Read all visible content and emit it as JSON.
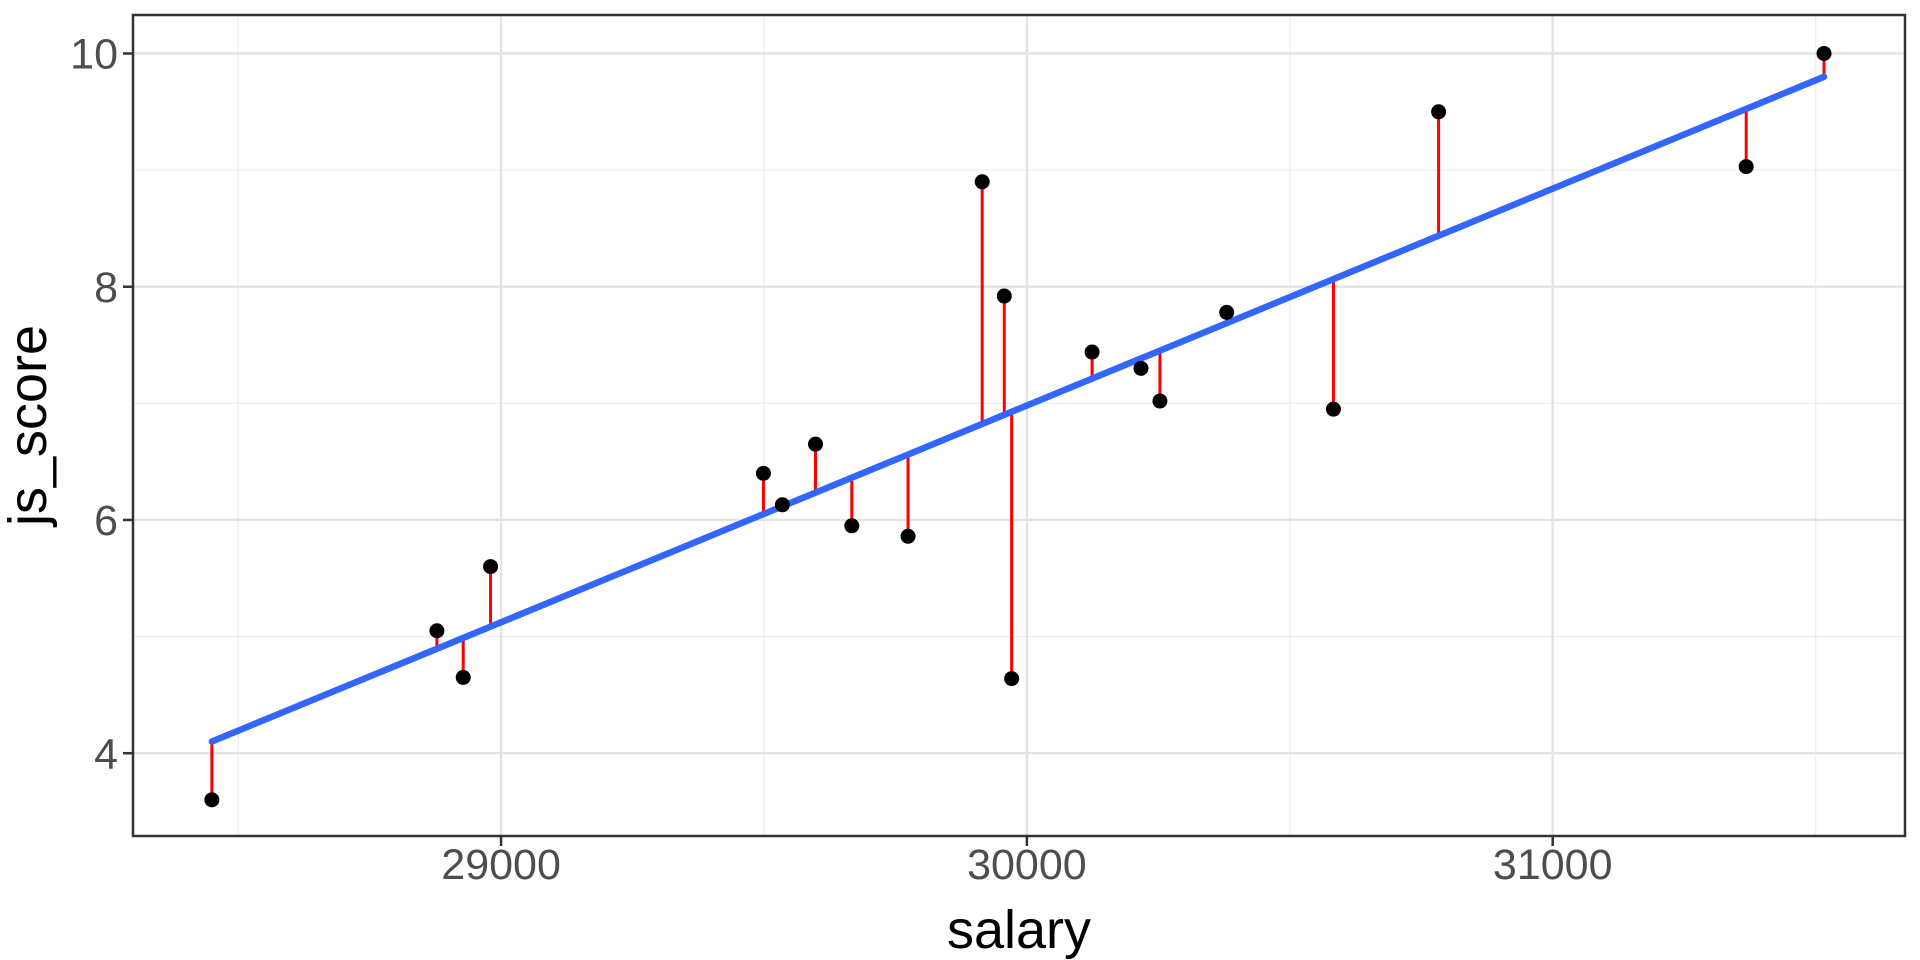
{
  "chart_data": {
    "type": "scatter",
    "title": "",
    "xlabel": "salary",
    "ylabel": "js_score",
    "xlim": [
      28300,
      31670
    ],
    "ylim": [
      3.29,
      10.33
    ],
    "x_major_ticks": [
      29000,
      30000,
      31000
    ],
    "x_minor_gridlines": [
      28500,
      29500,
      30500,
      31500
    ],
    "y_major_ticks": [
      4,
      6,
      8,
      10
    ],
    "y_minor_gridlines": [
      5,
      7,
      9
    ],
    "grid": "on",
    "legend": "none",
    "points": [
      {
        "salary": 28450,
        "js_score": 3.6
      },
      {
        "salary": 28878,
        "js_score": 5.05
      },
      {
        "salary": 28928,
        "js_score": 4.65
      },
      {
        "salary": 28980,
        "js_score": 5.6
      },
      {
        "salary": 29499,
        "js_score": 6.4
      },
      {
        "salary": 29535,
        "js_score": 6.13
      },
      {
        "salary": 29598,
        "js_score": 6.65
      },
      {
        "salary": 29667,
        "js_score": 5.95
      },
      {
        "salary": 29774,
        "js_score": 5.86
      },
      {
        "salary": 29915,
        "js_score": 8.9
      },
      {
        "salary": 29957,
        "js_score": 7.92
      },
      {
        "salary": 29971,
        "js_score": 4.64
      },
      {
        "salary": 30124,
        "js_score": 7.44
      },
      {
        "salary": 30217,
        "js_score": 7.3
      },
      {
        "salary": 30253,
        "js_score": 7.02
      },
      {
        "salary": 30380,
        "js_score": 7.78
      },
      {
        "salary": 30583,
        "js_score": 6.95
      },
      {
        "salary": 30783,
        "js_score": 9.5
      },
      {
        "salary": 31368,
        "js_score": 9.03
      },
      {
        "salary": 31516,
        "js_score": 10.0
      }
    ],
    "regression_line": {
      "x_start": 28450,
      "y_start": 4.1,
      "x_end": 31516,
      "y_end": 9.8,
      "slope_per_1000_salary": 1.86
    },
    "residual_segments": "red vertical segments from each point to fitted line",
    "colors": {
      "point": "#000000",
      "regression": "#3366FF",
      "residual": "#FF0000",
      "grid_major": "#E3E3E3",
      "grid_minor": "#F0F0F0",
      "panel_border": "#333333",
      "tick_mark": "#333333",
      "tick_label": "#4D4D4D",
      "axis_title": "#000000",
      "panel_background": "#FFFFFF"
    }
  }
}
